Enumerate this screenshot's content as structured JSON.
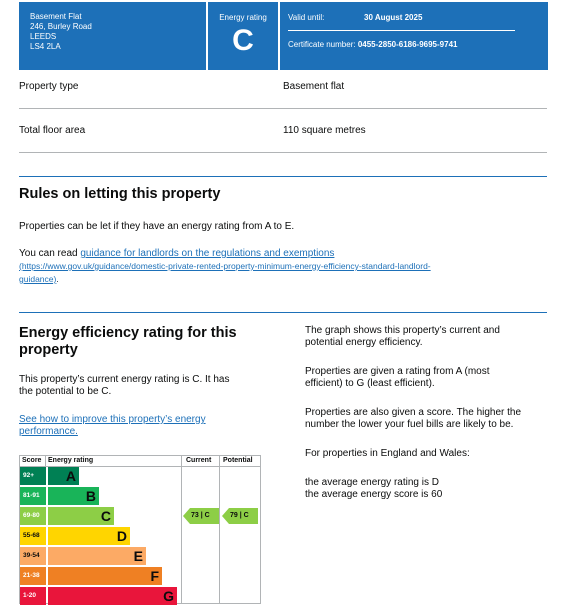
{
  "header": {
    "address_lines": [
      "Basement Flat",
      "246, Burley Road",
      "LEEDS",
      "LS4 2LA"
    ],
    "rating_label": "Energy rating",
    "rating_letter": "C",
    "valid_until_label": "Valid until:",
    "valid_until_value": "30 August 2025",
    "certificate_label": "Certificate number:",
    "certificate_value": "0455-2850-6186-9695-9741"
  },
  "summary": [
    {
      "label": "Property type",
      "value": "Basement flat"
    },
    {
      "label": "Total floor area",
      "value": "110 square metres"
    }
  ],
  "letting": {
    "heading": "Rules on letting this property",
    "para1": "Properties can be let if they have an energy rating from A to E.",
    "para2_prefix": "You can read ",
    "link_text": "guidance for landlords on the regulations and exemptions",
    "link_url_text": "(https://www.gov.uk/guidance/domestic-private-rented-property-minimum-energy-efficiency-standard-landlord-",
    "link_url_text2": "guidance)",
    "para2_suffix": "."
  },
  "efficiency": {
    "heading_line1": "Energy efficiency rating for this",
    "heading_line2": "property",
    "current_text_line1": "This property’s current energy rating is C. It has",
    "current_text_line2": "the potential to be C.",
    "improve_link_line1": "See how to improve this property’s energy",
    "improve_link_line2": "performance.",
    "right_p1_line1": "The graph shows this property’s current and",
    "right_p1_line2": "potential energy efficiency.",
    "right_p2_line1": "Properties are given a rating from A (most",
    "right_p2_line2": "efficient) to G (least efficient).",
    "right_p3_line1": "Properties are also given a score. The higher the",
    "right_p3_line2": "number the lower your fuel bills are likely to be.",
    "right_p4": "For properties in England and Wales:",
    "right_p5_line1": "the average energy rating is D",
    "right_p5_line2": "the average energy score is 60"
  },
  "chart": {
    "headers": {
      "score": "Score",
      "rating": "Energy rating",
      "current": "Current",
      "potential": "Potential"
    },
    "bands": [
      {
        "score": "92+",
        "letter": "A",
        "color": "#008054"
      },
      {
        "score": "81-91",
        "letter": "B",
        "color": "#19b459"
      },
      {
        "score": "69-80",
        "letter": "C",
        "color": "#8dce46"
      },
      {
        "score": "55-68",
        "letter": "D",
        "color": "#ffd500"
      },
      {
        "score": "39-54",
        "letter": "E",
        "color": "#fcaa65"
      },
      {
        "score": "21-38",
        "letter": "F",
        "color": "#ef8023"
      },
      {
        "score": "1-20",
        "letter": "G",
        "color": "#e9153b"
      }
    ],
    "current": {
      "text": "73 | C",
      "band": 2
    },
    "potential": {
      "text": "79 | C",
      "band": 2
    }
  }
}
